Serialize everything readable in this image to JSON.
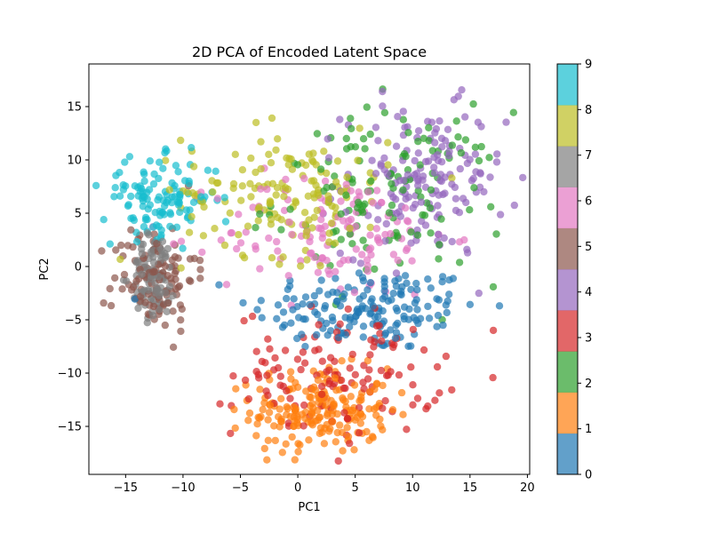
{
  "chart_data": {
    "type": "scatter",
    "title": "2D PCA of Encoded Latent Space",
    "xlabel": "PC1",
    "ylabel": "PC2",
    "xlim": [
      -18.2,
      20.2
    ],
    "ylim": [
      -19.5,
      19.0
    ],
    "xticks": [
      -15,
      -10,
      -5,
      0,
      5,
      10,
      15,
      20
    ],
    "yticks": [
      -15,
      -10,
      -5,
      0,
      5,
      10,
      15
    ],
    "grid": false,
    "legend": "none",
    "colorbar": {
      "min": 0,
      "max": 9,
      "ticks": [
        0,
        1,
        2,
        3,
        4,
        5,
        6,
        7,
        8,
        9
      ],
      "colors": [
        "#1f77b4",
        "#ff7f0e",
        "#2ca02c",
        "#d62728",
        "#9467bd",
        "#8c564b",
        "#e377c2",
        "#7f7f7f",
        "#bcbd22",
        "#17becf"
      ]
    },
    "classes": [
      {
        "label": 0,
        "center": [
          6.0,
          -4.0
        ],
        "spread": [
          5.0,
          2.0
        ],
        "count": 170
      },
      {
        "label": 1,
        "center": [
          2.0,
          -13.5
        ],
        "spread": [
          3.0,
          2.0
        ],
        "count": 200
      },
      {
        "label": 2,
        "center": [
          8.0,
          6.5
        ],
        "spread": [
          5.0,
          4.0
        ],
        "count": 130
      },
      {
        "label": 3,
        "center": [
          3.5,
          -10.0
        ],
        "spread": [
          4.5,
          3.0
        ],
        "count": 130
      },
      {
        "label": 4,
        "center": [
          11.0,
          8.0
        ],
        "spread": [
          3.5,
          3.5
        ],
        "count": 160
      },
      {
        "label": 5,
        "center": [
          -12.5,
          -1.0
        ],
        "spread": [
          1.8,
          2.5
        ],
        "count": 110
      },
      {
        "label": 6,
        "center": [
          3.0,
          3.0
        ],
        "spread": [
          5.0,
          3.0
        ],
        "count": 130
      },
      {
        "label": 7,
        "center": [
          -12.5,
          -1.0
        ],
        "spread": [
          1.0,
          2.0
        ],
        "count": 100
      },
      {
        "label": 8,
        "center": [
          -1.0,
          7.0
        ],
        "spread": [
          4.5,
          3.0
        ],
        "count": 150
      },
      {
        "label": 9,
        "center": [
          -12.0,
          6.5
        ],
        "spread": [
          2.5,
          1.8
        ],
        "count": 120
      }
    ]
  }
}
